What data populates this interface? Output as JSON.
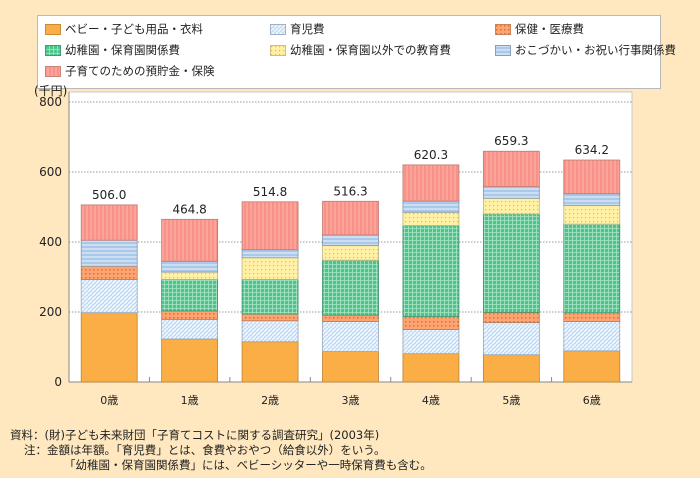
{
  "chart_data": {
    "type": "bar",
    "stacked": true,
    "ylabel": "(千円)",
    "ylim": [
      0,
      800
    ],
    "yticks": [
      0,
      200,
      400,
      600,
      800
    ],
    "grid": true,
    "legend_position": "top",
    "categories": [
      "0歳",
      "1歳",
      "2歳",
      "3歳",
      "4歳",
      "5歳",
      "6歳"
    ],
    "totals": [
      "506.0",
      "464.8",
      "514.8",
      "516.3",
      "620.3",
      "659.3",
      "634.2"
    ],
    "series": [
      {
        "name": "ベビー・子ども用品・衣料",
        "color": "#FBAE45",
        "pattern": "solid",
        "values": [
          198,
          123,
          115,
          87,
          81,
          78,
          89
        ]
      },
      {
        "name": "育児費",
        "color": "#C9DDF2",
        "pattern": "diagonal",
        "values": [
          95,
          56,
          60,
          86,
          69,
          92,
          84
        ]
      },
      {
        "name": "保健・医療費",
        "color": "#FCA472",
        "pattern": "dots",
        "values": [
          38,
          24,
          19,
          18,
          37,
          29,
          25
        ]
      },
      {
        "name": "幼稚園・保育園関係費",
        "color": "#4EC48C",
        "pattern": "grid",
        "values": [
          0,
          90,
          99,
          157,
          260,
          281,
          253
        ]
      },
      {
        "name": "幼稚園・保育園以外での教育費",
        "color": "#FFF0A6",
        "pattern": "dots-grid",
        "values": [
          0,
          21,
          62,
          42,
          38,
          45,
          53
        ]
      },
      {
        "name": "おこづかい・お祝い行事関係費",
        "color": "#A9C8EA",
        "pattern": "horizontal",
        "values": [
          74,
          31,
          23,
          30,
          32,
          33,
          34
        ]
      },
      {
        "name": "子育てのための預貯金・保険",
        "color": "#FCA39A",
        "pattern": "vertical",
        "values": [
          101,
          119.8,
          136.8,
          96.3,
          103.3,
          101.3,
          96.2
        ]
      }
    ]
  },
  "notes": {
    "source": "資料：(財)子ども未来財団「子育てコストに関する調査研究」(2003年)",
    "note1": "注：金額は年額。「育児費」とは、食費やおやつ（給食以外）をいう。",
    "note2": "「幼稚園・保育園関係費」には、ベビーシッターや一時保育費も含む。"
  }
}
